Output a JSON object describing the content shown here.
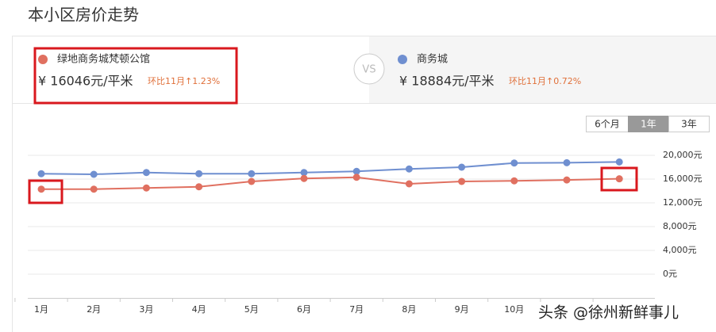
{
  "header": {
    "title": "本小区房价走势"
  },
  "compare": {
    "left": {
      "name": "绿地商务城梵顿公馆",
      "price": "¥ 16046元/平米",
      "change": "环比11月↑1.23%"
    },
    "vs": "VS",
    "right": {
      "name": "商务城",
      "price": "¥ 18884元/平米",
      "change": "环比11月↑0.72%"
    }
  },
  "tabs": [
    "6个月",
    "1年",
    "3年"
  ],
  "chart_data": {
    "type": "line",
    "categories": [
      "1月",
      "2月",
      "3月",
      "4月",
      "5月",
      "6月",
      "7月",
      "8月",
      "9月",
      "10月",
      null,
      null
    ],
    "series": [
      {
        "name": "商务城",
        "color": "#6f8fd0",
        "values": [
          16900,
          16800,
          17100,
          16900,
          16900,
          17100,
          17300,
          17700,
          18000,
          18700,
          18750,
          18884
        ]
      },
      {
        "name": "绿地商务城梵顿公馆",
        "color": "#e07060",
        "values": [
          14300,
          14300,
          14500,
          14700,
          15600,
          16100,
          16300,
          15200,
          15600,
          15700,
          15850,
          16046
        ]
      }
    ],
    "ylim": [
      0,
      20000
    ],
    "yticks": [
      {
        "value": 0,
        "label": "0元"
      },
      {
        "value": 4000,
        "label": "4,000元"
      },
      {
        "value": 8000,
        "label": "8,000元"
      },
      {
        "value": 12000,
        "label": "12,000元"
      },
      {
        "value": 16000,
        "label": "16,000元"
      },
      {
        "value": 20000,
        "label": "20,000元"
      }
    ],
    "grid": true
  },
  "watermark": "头条 @徐州新鲜事儿"
}
